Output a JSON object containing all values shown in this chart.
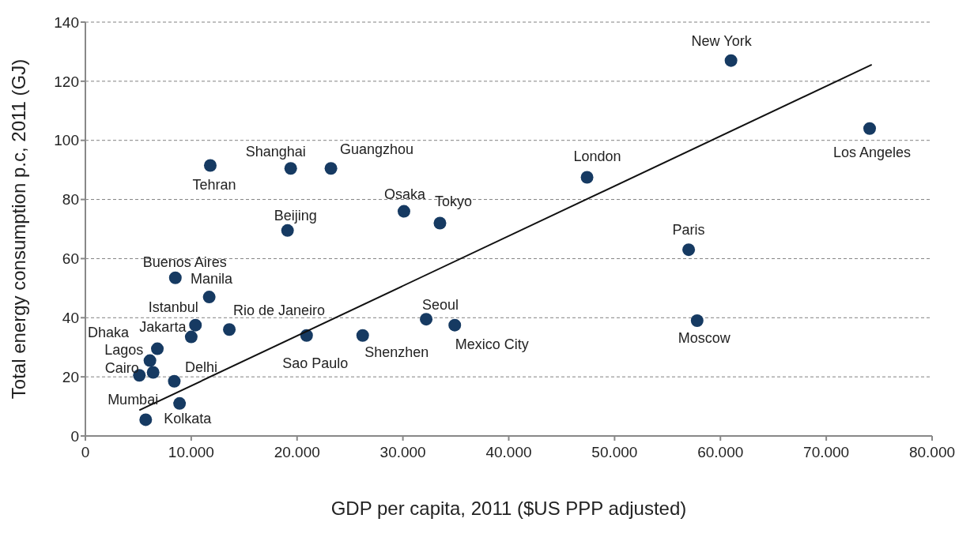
{
  "chart_data": {
    "type": "scatter",
    "xlabel": "GDP per capita, 2011 ($US PPP adjusted)",
    "ylabel": "Total energy consumption p.c, 2011 (GJ)",
    "xlim": [
      0,
      80000
    ],
    "xticks": [
      0,
      {
        "value": 10000,
        "label": "10.000"
      },
      {
        "value": 20000,
        "label": "20.000"
      },
      {
        "value": 30000,
        "label": "30.000"
      },
      {
        "value": 40000,
        "label": "40.000"
      },
      {
        "value": 50000,
        "label": "50.000"
      },
      {
        "value": 60000,
        "label": "60.000"
      },
      {
        "value": 70000,
        "label": "70.000"
      },
      {
        "value": 80000,
        "label": "80.000"
      }
    ],
    "ylim": [
      0,
      140
    ],
    "yticks": [
      0,
      20,
      40,
      60,
      80,
      100,
      120,
      140
    ],
    "grid": "y",
    "marker": "circle",
    "series": [
      {
        "type": "scatter",
        "color": "#163a62",
        "x": [
          61000,
          74100,
          47400,
          57000,
          57800,
          11800,
          19400,
          23200,
          30100,
          33500,
          19100,
          8500,
          11700,
          10400,
          10000,
          13600,
          20900,
          26200,
          32200,
          34900,
          6800,
          6100,
          6400,
          5100,
          8400,
          8900,
          5700
        ],
        "values": [
          127,
          104,
          87.5,
          63,
          39,
          91.5,
          90.5,
          90.5,
          76,
          72,
          69.5,
          53.5,
          47,
          37.5,
          33.5,
          36,
          34,
          34,
          39.5,
          37.5,
          29.5,
          25.5,
          21.5,
          20.5,
          18.5,
          11,
          5.5
        ]
      },
      {
        "type": "line",
        "color": "#111111",
        "x": [
          5100,
          74300
        ],
        "values": [
          8.7,
          125.6
        ],
        "marker": "none"
      }
    ],
    "annotations": [
      {
        "text": "New York",
        "x": 61000,
        "y": 127
      },
      {
        "text": "Los Angeles",
        "x": 74100,
        "y": 104
      },
      {
        "text": "London",
        "x": 47400,
        "y": 87.5
      },
      {
        "text": "Paris",
        "x": 57000,
        "y": 63
      },
      {
        "text": "Moscow",
        "x": 57800,
        "y": 39
      },
      {
        "text": "Tehran",
        "x": 11800,
        "y": 91.5
      },
      {
        "text": "Shanghai",
        "x": 19400,
        "y": 90.5
      },
      {
        "text": "Guangzhou",
        "x": 23200,
        "y": 90.5
      },
      {
        "text": "Osaka",
        "x": 30100,
        "y": 76
      },
      {
        "text": "Tokyo",
        "x": 33500,
        "y": 72
      },
      {
        "text": "Beijing",
        "x": 19100,
        "y": 69.5
      },
      {
        "text": "Buenos Aires",
        "x": 8500,
        "y": 53.5
      },
      {
        "text": "Manila",
        "x": 11700,
        "y": 47
      },
      {
        "text": "Istanbul",
        "x": 10400,
        "y": 37.5
      },
      {
        "text": "Jakarta",
        "x": 10000,
        "y": 33.5
      },
      {
        "text": "Rio de Janeiro",
        "x": 13600,
        "y": 36
      },
      {
        "text": "Sao Paulo",
        "x": 20900,
        "y": 34
      },
      {
        "text": "Shenzhen",
        "x": 26200,
        "y": 34
      },
      {
        "text": "Seoul",
        "x": 32200,
        "y": 39.5
      },
      {
        "text": "Mexico City",
        "x": 34900,
        "y": 37.5
      },
      {
        "text": "Dhaka",
        "x": 6800,
        "y": 29.5
      },
      {
        "text": "Lagos",
        "x": 6100,
        "y": 25.5
      },
      {
        "text": "Cairo",
        "x": 5100,
        "y": 20.5
      },
      {
        "text": "Delhi",
        "x": 8400,
        "y": 18.5
      },
      {
        "text": "Mumbai",
        "x": 8900,
        "y": 11
      },
      {
        "text": "Kolkata",
        "x": 5700,
        "y": 5.5
      }
    ]
  }
}
